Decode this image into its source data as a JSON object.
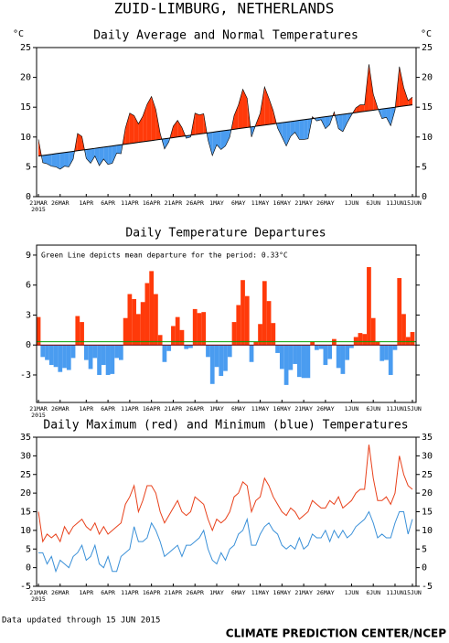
{
  "title": "ZUID-LIMBURG, NETHERLANDS",
  "footer_left": "Data updated through 15 JUN 2015",
  "footer_right": "CLIMATE PREDICTION CENTER/NCEP",
  "chart_data": [
    {
      "type": "area-departure",
      "title": "Daily Average and Normal Temperatures",
      "y_unit": "°C",
      "x_sublabel": "2015",
      "categories": [
        "21MAR",
        null,
        null,
        null,
        null,
        "26MAR",
        null,
        null,
        null,
        null,
        null,
        "1APR",
        null,
        null,
        null,
        null,
        "6APR",
        null,
        null,
        null,
        null,
        "11APR",
        null,
        null,
        null,
        null,
        "16APR",
        null,
        null,
        null,
        null,
        "21APR",
        null,
        null,
        null,
        null,
        "26APR",
        null,
        null,
        null,
        null,
        "1MAY",
        null,
        null,
        null,
        null,
        "6MAY",
        null,
        null,
        null,
        null,
        "11MAY",
        null,
        null,
        null,
        null,
        "16MAY",
        null,
        null,
        null,
        null,
        "21MAY",
        null,
        null,
        null,
        null,
        "26MAY",
        null,
        null,
        null,
        null,
        null,
        "1JUN",
        null,
        null,
        null,
        null,
        "6JUN",
        null,
        null,
        null,
        null,
        "11JUN",
        null,
        null,
        null,
        "15JUN"
      ],
      "above_color": "#ff3a0a",
      "below_color": "#4a9cf0",
      "series": [
        {
          "color": "#000000",
          "values": [
            9.6,
            5.7,
            5.5,
            5.1,
            5.0,
            4.6,
            5.1,
            5.0,
            6.3,
            10.6,
            10.1,
            6.4,
            5.6,
            6.8,
            5.2,
            6.3,
            5.4,
            5.6,
            7.3,
            7.2,
            11.5,
            14.0,
            13.6,
            12.2,
            13.5,
            15.5,
            16.8,
            14.6,
            10.6,
            8.0,
            9.2,
            11.8,
            12.8,
            11.6,
            9.8,
            10.0,
            14.0,
            13.7,
            13.9,
            9.5,
            6.9,
            8.7,
            7.9,
            8.5,
            10.0,
            13.6,
            15.4,
            18.0,
            16.5,
            10.0,
            12.1,
            14.0,
            18.4,
            16.5,
            14.4,
            11.5,
            10.0,
            8.5,
            10.1,
            10.8,
            9.6,
            9.6,
            9.7,
            13.4,
            12.7,
            12.9,
            11.4,
            12.1,
            14.2,
            11.4,
            10.9,
            12.4,
            13.7,
            14.9,
            15.4,
            15.4,
            22.2,
            17.2,
            14.9,
            13.1,
            13.3,
            11.9,
            14.5,
            21.8,
            18.3,
            16.1,
            16.7
          ]
        },
        {
          "color": "#000000",
          "values": [
            6.8,
            6.9,
            7.0,
            7.1,
            7.2,
            7.3,
            7.4,
            7.5,
            7.6,
            7.7,
            7.8,
            7.9,
            8.0,
            8.1,
            8.2,
            8.3,
            8.4,
            8.5,
            8.6,
            8.7,
            8.8,
            8.9,
            9.0,
            9.1,
            9.2,
            9.3,
            9.4,
            9.5,
            9.6,
            9.7,
            9.8,
            9.9,
            10.0,
            10.1,
            10.2,
            10.3,
            10.4,
            10.5,
            10.6,
            10.7,
            10.8,
            10.9,
            11.0,
            11.1,
            11.2,
            11.3,
            11.4,
            11.5,
            11.6,
            11.7,
            11.8,
            11.9,
            12.0,
            12.1,
            12.2,
            12.3,
            12.4,
            12.5,
            12.6,
            12.7,
            12.8,
            12.9,
            13.0,
            13.1,
            13.2,
            13.3,
            13.4,
            13.5,
            13.6,
            13.7,
            13.8,
            13.9,
            14.0,
            14.1,
            14.2,
            14.3,
            14.4,
            14.5,
            14.6,
            14.7,
            14.8,
            14.9,
            15.0,
            15.1,
            15.2,
            15.3,
            15.4
          ]
        }
      ],
      "ylim": [
        0,
        25
      ],
      "yticks": [
        0,
        5,
        10,
        15,
        20,
        25
      ]
    },
    {
      "type": "bar",
      "title": "Daily Temperature Departures",
      "annotation": "Green Line depicts mean departure for the period:  0.33°C",
      "mean_line": 0.33,
      "mean_color": "#00a000",
      "above_color": "#ff3a0a",
      "below_color": "#4a9cf0",
      "values": [
        2.8,
        -1.2,
        -1.5,
        -2,
        -2.2,
        -2.7,
        -2.3,
        -2.5,
        -1.3,
        2.9,
        2.3,
        -1.5,
        -2.4,
        -1.3,
        -3.0,
        -2.0,
        -3.0,
        -2.9,
        -1.3,
        -1.5,
        2.7,
        5.1,
        4.6,
        3.1,
        4.3,
        6.2,
        7.4,
        5.1,
        1.0,
        -1.7,
        -0.6,
        1.9,
        2.8,
        1.5,
        -0.4,
        -0.3,
        3.6,
        3.2,
        3.3,
        -1.2,
        -3.9,
        -2.2,
        -3.1,
        -2.6,
        -1.2,
        2.3,
        4.0,
        6.5,
        4.9,
        -1.7,
        0.3,
        2.1,
        6.4,
        4.4,
        2.2,
        -0.8,
        -2.4,
        -4.0,
        -2.5,
        -1.9,
        -3.2,
        -3.3,
        -3.3,
        0.3,
        -0.5,
        -0.4,
        -2.0,
        -1.4,
        0.6,
        -2.3,
        -2.9,
        -1.5,
        -0.3,
        0.8,
        1.2,
        1.1,
        7.8,
        2.7,
        0.3,
        -1.6,
        -1.5,
        -3.0,
        -0.5,
        6.7,
        3.1,
        0.8,
        1.3
      ],
      "ylim": [
        -5.75,
        10
      ],
      "yticks": [
        -3,
        0,
        3,
        6,
        9
      ]
    },
    {
      "type": "line",
      "title": "Daily Maximum (red) and Minimum (blue) Temperatures",
      "series": [
        {
          "color": "#e8401a",
          "values": [
            15,
            7,
            9,
            8,
            9,
            7,
            11,
            9,
            11,
            12,
            13,
            11,
            10,
            12,
            9,
            11,
            9,
            10,
            11,
            12,
            17,
            19,
            22,
            15,
            18,
            22,
            22,
            20,
            15,
            12,
            14,
            16,
            18,
            15,
            14,
            15,
            19,
            18,
            17,
            13,
            10,
            13,
            12,
            13,
            15,
            19,
            20,
            23,
            22,
            15,
            18,
            19,
            24,
            22,
            19,
            17,
            15,
            14,
            16,
            15,
            13,
            14,
            15,
            18,
            17,
            16,
            16,
            18,
            17,
            19,
            16,
            17,
            18,
            20,
            21,
            21,
            33,
            24,
            18,
            18,
            19,
            17,
            20,
            30,
            25,
            22,
            21
          ]
        },
        {
          "color": "#3a90d8",
          "values": [
            4,
            4,
            1,
            3,
            -1,
            2,
            1,
            0,
            3,
            4,
            6,
            2,
            3,
            6,
            1,
            0,
            3,
            -1,
            -1,
            3,
            4,
            5,
            11,
            7,
            7,
            8,
            12,
            10,
            7,
            3,
            4,
            5,
            6,
            3,
            6,
            6,
            7,
            8,
            10,
            5,
            2,
            1,
            4,
            2,
            5,
            6,
            9,
            10,
            13,
            6,
            6,
            9,
            11,
            12,
            10,
            9,
            6,
            5,
            6,
            5,
            8,
            5,
            6,
            9,
            8,
            8,
            10,
            7,
            10,
            8,
            10,
            8,
            9,
            11,
            12,
            13,
            15,
            12,
            8,
            9,
            8,
            8,
            12,
            15,
            15,
            9,
            13
          ]
        }
      ],
      "ylim": [
        -5,
        35
      ],
      "yticks": [
        -5,
        0,
        5,
        10,
        15,
        20,
        25,
        30,
        35
      ]
    }
  ]
}
